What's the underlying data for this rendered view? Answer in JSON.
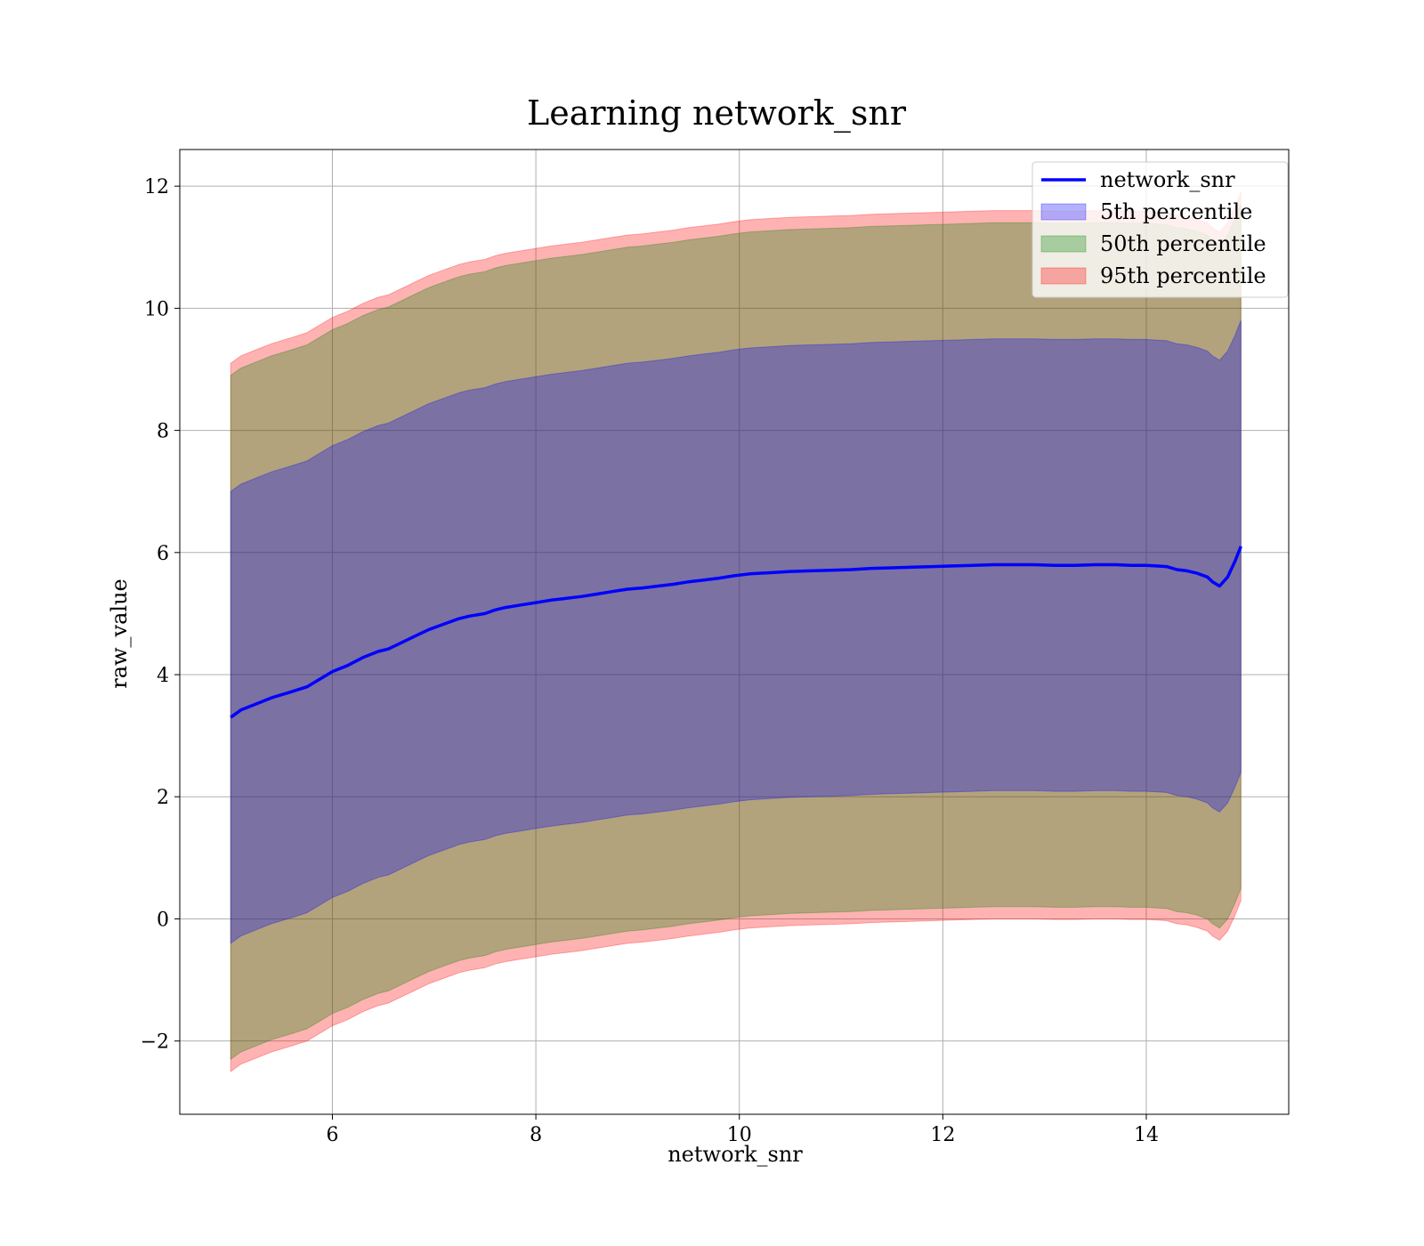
{
  "chart_data": {
    "type": "line",
    "title": "Learning network_snr",
    "xlabel": "network_snr",
    "ylabel": "raw_value",
    "xlim": [
      4.5,
      15.4
    ],
    "ylim": [
      -3.2,
      12.6
    ],
    "x_ticks": [
      6,
      8,
      10,
      12,
      14
    ],
    "y_ticks": [
      -2,
      0,
      2,
      4,
      6,
      8,
      10,
      12
    ],
    "x_tick_labels": [
      "6",
      "8",
      "10",
      "12",
      "14"
    ],
    "y_tick_labels": [
      "−2",
      "0",
      "2",
      "4",
      "6",
      "8",
      "10",
      "12"
    ],
    "grid": true,
    "legend_position": "top-right",
    "x": [
      5.0,
      5.1,
      5.25,
      5.4,
      5.6,
      5.75,
      5.9,
      6.0,
      6.15,
      6.3,
      6.45,
      6.55,
      6.65,
      6.75,
      6.85,
      6.95,
      7.05,
      7.15,
      7.25,
      7.35,
      7.5,
      7.6,
      7.7,
      7.85,
      8.0,
      8.15,
      8.3,
      8.45,
      8.6,
      8.75,
      8.9,
      9.05,
      9.2,
      9.35,
      9.5,
      9.65,
      9.8,
      9.95,
      10.1,
      10.3,
      10.5,
      10.7,
      10.9,
      11.1,
      11.3,
      11.5,
      11.7,
      11.9,
      12.1,
      12.3,
      12.5,
      12.6,
      12.75,
      12.9,
      13.1,
      13.3,
      13.5,
      13.7,
      13.85,
      14.0,
      14.1,
      14.2,
      14.3,
      14.4,
      14.5,
      14.6,
      14.65,
      14.72,
      14.8,
      14.87,
      14.93
    ],
    "series": [
      {
        "name": "network_snr",
        "values": [
          3.3,
          3.42,
          3.52,
          3.62,
          3.72,
          3.8,
          3.95,
          4.05,
          4.15,
          4.28,
          4.38,
          4.42,
          4.5,
          4.58,
          4.66,
          4.74,
          4.8,
          4.86,
          4.92,
          4.96,
          5.0,
          5.06,
          5.1,
          5.14,
          5.18,
          5.22,
          5.25,
          5.28,
          5.32,
          5.36,
          5.4,
          5.42,
          5.45,
          5.48,
          5.52,
          5.55,
          5.58,
          5.62,
          5.65,
          5.67,
          5.69,
          5.7,
          5.71,
          5.72,
          5.74,
          5.75,
          5.76,
          5.77,
          5.78,
          5.79,
          5.8,
          5.8,
          5.8,
          5.8,
          5.79,
          5.79,
          5.8,
          5.8,
          5.79,
          5.79,
          5.78,
          5.77,
          5.72,
          5.7,
          5.66,
          5.6,
          5.52,
          5.45,
          5.6,
          5.85,
          6.1
        ]
      },
      {
        "name": "5th percentile",
        "values": [
          -0.4,
          -0.28,
          -0.18,
          -0.08,
          0.02,
          0.1,
          0.25,
          0.35,
          0.45,
          0.58,
          0.68,
          0.72,
          0.8,
          0.88,
          0.96,
          1.04,
          1.1,
          1.16,
          1.22,
          1.26,
          1.3,
          1.36,
          1.4,
          1.44,
          1.48,
          1.52,
          1.55,
          1.58,
          1.62,
          1.66,
          1.7,
          1.72,
          1.75,
          1.78,
          1.82,
          1.85,
          1.88,
          1.92,
          1.95,
          1.97,
          1.99,
          2.0,
          2.01,
          2.02,
          2.04,
          2.05,
          2.06,
          2.07,
          2.08,
          2.09,
          2.1,
          2.1,
          2.1,
          2.1,
          2.09,
          2.09,
          2.1,
          2.1,
          2.09,
          2.09,
          2.08,
          2.07,
          2.02,
          2.0,
          1.96,
          1.9,
          1.82,
          1.75,
          1.9,
          2.15,
          2.4
        ],
        "upper": [
          7.0,
          7.12,
          7.22,
          7.32,
          7.42,
          7.5,
          7.65,
          7.75,
          7.85,
          7.98,
          8.08,
          8.12,
          8.2,
          8.28,
          8.36,
          8.44,
          8.5,
          8.56,
          8.62,
          8.66,
          8.7,
          8.76,
          8.8,
          8.84,
          8.88,
          8.92,
          8.95,
          8.98,
          9.02,
          9.06,
          9.1,
          9.12,
          9.15,
          9.18,
          9.22,
          9.25,
          9.28,
          9.32,
          9.35,
          9.37,
          9.39,
          9.4,
          9.41,
          9.42,
          9.44,
          9.45,
          9.46,
          9.47,
          9.48,
          9.49,
          9.5,
          9.5,
          9.5,
          9.5,
          9.49,
          9.49,
          9.5,
          9.5,
          9.49,
          9.49,
          9.48,
          9.47,
          9.42,
          9.4,
          9.36,
          9.3,
          9.22,
          9.15,
          9.3,
          9.55,
          9.8
        ]
      },
      {
        "name": "50th percentile",
        "lower": [
          -2.3,
          -2.18,
          -2.08,
          -1.98,
          -1.88,
          -1.8,
          -1.65,
          -1.55,
          -1.45,
          -1.32,
          -1.22,
          -1.18,
          -1.1,
          -1.02,
          -0.94,
          -0.86,
          -0.8,
          -0.74,
          -0.68,
          -0.64,
          -0.6,
          -0.54,
          -0.5,
          -0.46,
          -0.42,
          -0.38,
          -0.35,
          -0.32,
          -0.28,
          -0.24,
          -0.2,
          -0.18,
          -0.15,
          -0.12,
          -0.08,
          -0.05,
          -0.02,
          0.02,
          0.05,
          0.07,
          0.09,
          0.1,
          0.11,
          0.12,
          0.14,
          0.15,
          0.16,
          0.17,
          0.18,
          0.19,
          0.2,
          0.2,
          0.2,
          0.2,
          0.19,
          0.19,
          0.2,
          0.2,
          0.19,
          0.19,
          0.18,
          0.17,
          0.12,
          0.1,
          0.06,
          0.0,
          -0.08,
          -0.15,
          0.0,
          0.25,
          0.5
        ],
        "upper": [
          8.9,
          9.02,
          9.12,
          9.22,
          9.32,
          9.4,
          9.55,
          9.65,
          9.75,
          9.88,
          9.98,
          10.02,
          10.1,
          10.18,
          10.26,
          10.34,
          10.4,
          10.46,
          10.52,
          10.56,
          10.6,
          10.66,
          10.7,
          10.74,
          10.78,
          10.82,
          10.85,
          10.88,
          10.92,
          10.96,
          11.0,
          11.02,
          11.05,
          11.08,
          11.12,
          11.15,
          11.18,
          11.22,
          11.25,
          11.27,
          11.29,
          11.3,
          11.31,
          11.32,
          11.34,
          11.35,
          11.36,
          11.37,
          11.38,
          11.39,
          11.4,
          11.4,
          11.4,
          11.4,
          11.39,
          11.39,
          11.4,
          11.4,
          11.39,
          11.39,
          11.38,
          11.37,
          11.32,
          11.3,
          11.26,
          11.2,
          11.12,
          11.05,
          11.2,
          11.45,
          11.7
        ]
      },
      {
        "name": "95th percentile",
        "lower": [
          -2.5,
          -2.38,
          -2.28,
          -2.18,
          -2.08,
          -2.0,
          -1.85,
          -1.75,
          -1.65,
          -1.52,
          -1.42,
          -1.38,
          -1.3,
          -1.22,
          -1.14,
          -1.06,
          -1.0,
          -0.94,
          -0.88,
          -0.84,
          -0.8,
          -0.74,
          -0.7,
          -0.66,
          -0.62,
          -0.58,
          -0.55,
          -0.52,
          -0.48,
          -0.44,
          -0.4,
          -0.38,
          -0.35,
          -0.32,
          -0.28,
          -0.25,
          -0.22,
          -0.18,
          -0.15,
          -0.13,
          -0.11,
          -0.1,
          -0.09,
          -0.08,
          -0.06,
          -0.05,
          -0.04,
          -0.03,
          -0.02,
          -0.01,
          0.0,
          0.0,
          0.0,
          0.0,
          -0.01,
          -0.01,
          0.0,
          0.0,
          -0.01,
          -0.01,
          -0.02,
          -0.03,
          -0.08,
          -0.1,
          -0.14,
          -0.2,
          -0.28,
          -0.35,
          -0.2,
          0.05,
          0.3
        ],
        "upper": [
          9.1,
          9.22,
          9.32,
          9.42,
          9.52,
          9.6,
          9.75,
          9.85,
          9.95,
          10.08,
          10.18,
          10.22,
          10.3,
          10.38,
          10.46,
          10.54,
          10.6,
          10.66,
          10.72,
          10.76,
          10.8,
          10.86,
          10.9,
          10.94,
          10.98,
          11.02,
          11.05,
          11.08,
          11.12,
          11.16,
          11.2,
          11.22,
          11.25,
          11.28,
          11.32,
          11.35,
          11.38,
          11.42,
          11.45,
          11.47,
          11.49,
          11.5,
          11.51,
          11.52,
          11.54,
          11.55,
          11.56,
          11.57,
          11.58,
          11.59,
          11.6,
          11.6,
          11.6,
          11.6,
          11.59,
          11.59,
          11.6,
          11.6,
          11.59,
          11.59,
          11.58,
          11.57,
          11.52,
          11.5,
          11.46,
          11.4,
          11.32,
          11.25,
          11.4,
          11.65,
          11.9
        ]
      }
    ],
    "legend": [
      {
        "label": "network_snr",
        "kind": "line",
        "color": "#0000ff"
      },
      {
        "label": "5th percentile",
        "kind": "patch",
        "color": "#0000ff",
        "alpha": 0.3
      },
      {
        "label": "50th percentile",
        "kind": "patch",
        "color": "#008000",
        "alpha": 0.3
      },
      {
        "label": "95th percentile",
        "kind": "patch",
        "color": "#ff0000",
        "alpha": 0.3
      }
    ],
    "colors": {
      "line": "#0000ff",
      "band_5th": "#0000ff",
      "band_50th": "#008000",
      "band_95th": "#ff0000",
      "grid": "#b0b0b0"
    }
  }
}
